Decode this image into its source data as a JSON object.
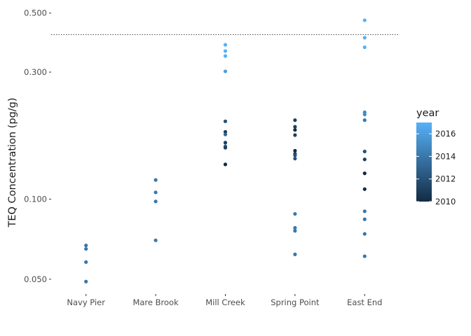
{
  "chart_data": {
    "type": "scatter",
    "ylabel": "TEQ Concentration (pg/g)",
    "xlabel": "",
    "y_scale": "log",
    "ylim": [
      0.044,
      0.54
    ],
    "y_ticks": [
      0.05,
      0.1,
      0.3,
      0.5
    ],
    "y_tick_labels": [
      "0.050",
      "0.100",
      "0.300",
      "0.500"
    ],
    "categories": [
      "Navy Pier",
      "Mare Brook",
      "Mill Creek",
      "Spring Point",
      "East End"
    ],
    "reference_line": {
      "y": 0.415,
      "style": "dotted"
    },
    "grid": false,
    "legend": {
      "title": "year",
      "position": "right",
      "type": "colorbar",
      "range": [
        2010,
        2017
      ],
      "ticks": [
        2010,
        2012,
        2014,
        2016
      ],
      "tick_labels": [
        "2010",
        "2012",
        "2014",
        "2016"
      ],
      "color_low": "#132B43",
      "color_high": "#56B1F7"
    },
    "points": [
      {
        "x": "Navy Pier",
        "y": 0.067,
        "year": 2014
      },
      {
        "x": "Navy Pier",
        "y": 0.065,
        "year": 2014
      },
      {
        "x": "Navy Pier",
        "y": 0.058,
        "year": 2014
      },
      {
        "x": "Navy Pier",
        "y": 0.049,
        "year": 2014
      },
      {
        "x": "Mare Brook",
        "y": 0.118,
        "year": 2014
      },
      {
        "x": "Mare Brook",
        "y": 0.106,
        "year": 2014
      },
      {
        "x": "Mare Brook",
        "y": 0.098,
        "year": 2014
      },
      {
        "x": "Mare Brook",
        "y": 0.07,
        "year": 2014
      },
      {
        "x": "Mill Creek",
        "y": 0.38,
        "year": 2017
      },
      {
        "x": "Mill Creek",
        "y": 0.36,
        "year": 2017
      },
      {
        "x": "Mill Creek",
        "y": 0.345,
        "year": 2017
      },
      {
        "x": "Mill Creek",
        "y": 0.302,
        "year": 2016
      },
      {
        "x": "Mill Creek",
        "y": 0.196,
        "year": 2012
      },
      {
        "x": "Mill Creek",
        "y": 0.179,
        "year": 2011
      },
      {
        "x": "Mill Creek",
        "y": 0.175,
        "year": 2013
      },
      {
        "x": "Mill Creek",
        "y": 0.163,
        "year": 2011
      },
      {
        "x": "Mill Creek",
        "y": 0.158,
        "year": 2013
      },
      {
        "x": "Mill Creek",
        "y": 0.156,
        "year": 2011
      },
      {
        "x": "Mill Creek",
        "y": 0.135,
        "year": 2010
      },
      {
        "x": "Spring Point",
        "y": 0.198,
        "year": 2011
      },
      {
        "x": "Spring Point",
        "y": 0.187,
        "year": 2011
      },
      {
        "x": "Spring Point",
        "y": 0.182,
        "year": 2010
      },
      {
        "x": "Spring Point",
        "y": 0.174,
        "year": 2011
      },
      {
        "x": "Spring Point",
        "y": 0.152,
        "year": 2010
      },
      {
        "x": "Spring Point",
        "y": 0.148,
        "year": 2011
      },
      {
        "x": "Spring Point",
        "y": 0.146,
        "year": 2012
      },
      {
        "x": "Spring Point",
        "y": 0.142,
        "year": 2012
      },
      {
        "x": "Spring Point",
        "y": 0.088,
        "year": 2014
      },
      {
        "x": "Spring Point",
        "y": 0.078,
        "year": 2014
      },
      {
        "x": "Spring Point",
        "y": 0.076,
        "year": 2014
      },
      {
        "x": "Spring Point",
        "y": 0.062,
        "year": 2014
      },
      {
        "x": "East End",
        "y": 0.47,
        "year": 2017
      },
      {
        "x": "East End",
        "y": 0.404,
        "year": 2017
      },
      {
        "x": "East End",
        "y": 0.372,
        "year": 2017
      },
      {
        "x": "East End",
        "y": 0.212,
        "year": 2015
      },
      {
        "x": "East End",
        "y": 0.208,
        "year": 2015
      },
      {
        "x": "East End",
        "y": 0.198,
        "year": 2014
      },
      {
        "x": "East End",
        "y": 0.151,
        "year": 2012
      },
      {
        "x": "East End",
        "y": 0.141,
        "year": 2011
      },
      {
        "x": "East End",
        "y": 0.125,
        "year": 2010
      },
      {
        "x": "East End",
        "y": 0.109,
        "year": 2010
      },
      {
        "x": "East End",
        "y": 0.09,
        "year": 2014
      },
      {
        "x": "East End",
        "y": 0.084,
        "year": 2014
      },
      {
        "x": "East End",
        "y": 0.074,
        "year": 2014
      },
      {
        "x": "East End",
        "y": 0.061,
        "year": 2014
      }
    ]
  }
}
